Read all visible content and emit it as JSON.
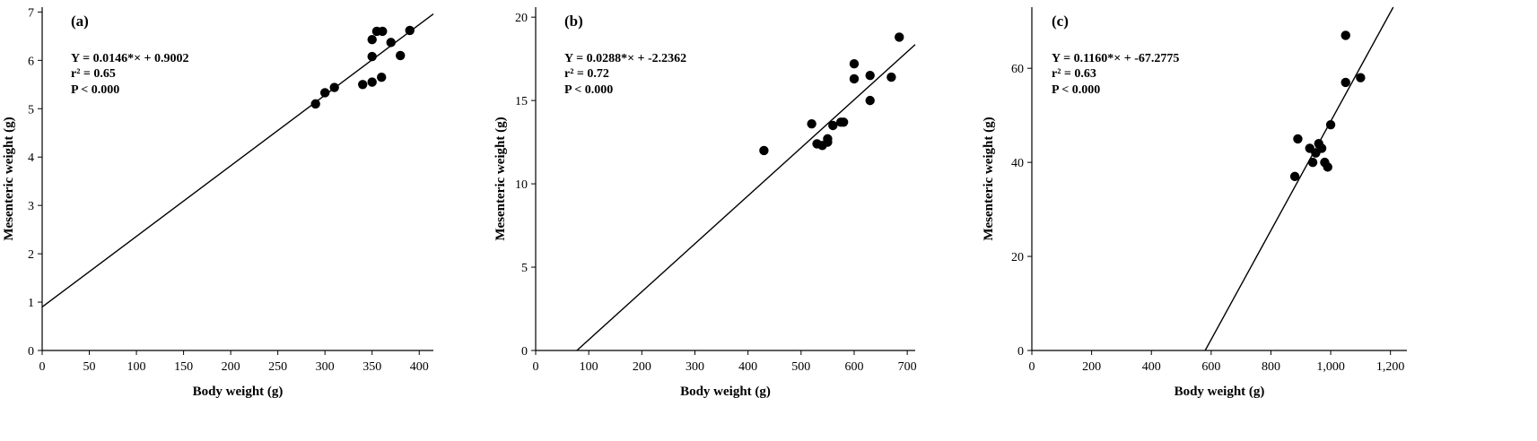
{
  "chart_data": [
    {
      "type": "scatter",
      "panel_label": "(a)",
      "xlabel": "Body weight (g)",
      "ylabel": "Mesenteric weight (g)",
      "xlim": [
        0,
        415
      ],
      "ylim": [
        0,
        7.1
      ],
      "xticks": [
        0,
        50,
        100,
        150,
        200,
        250,
        300,
        350,
        400
      ],
      "xtick_labels": [
        "0",
        "50",
        "100",
        "150",
        "200",
        "250",
        "300",
        "350",
        "400"
      ],
      "yticks": [
        0,
        1,
        2,
        3,
        4,
        5,
        6,
        7
      ],
      "ytick_labels": [
        "0",
        "1",
        "2",
        "3",
        "4",
        "5",
        "6",
        "7"
      ],
      "annotation": {
        "eq": "Y = 0.0146*× + 0.9002",
        "r2": "r² = 0.65",
        "p": "P < 0.000"
      },
      "fit": {
        "slope": 0.0146,
        "intercept": 0.9002
      },
      "points": [
        [
          290,
          5.1
        ],
        [
          300,
          5.33
        ],
        [
          310,
          5.44
        ],
        [
          340,
          5.5
        ],
        [
          350,
          5.55
        ],
        [
          360,
          5.65
        ],
        [
          350,
          6.08
        ],
        [
          380,
          6.1
        ],
        [
          370,
          6.37
        ],
        [
          350,
          6.43
        ],
        [
          355,
          6.6
        ],
        [
          361,
          6.6
        ],
        [
          390,
          6.62
        ]
      ]
    },
    {
      "type": "scatter",
      "panel_label": "(b)",
      "xlabel": "Body weight (g)",
      "ylabel": "Mesenteric weight (g)",
      "xlim": [
        0,
        715
      ],
      "ylim": [
        0,
        20.6
      ],
      "xticks": [
        0,
        100,
        200,
        300,
        400,
        500,
        600,
        700
      ],
      "xtick_labels": [
        "0",
        "100",
        "200",
        "300",
        "400",
        "500",
        "600",
        "700"
      ],
      "yticks": [
        0,
        5,
        10,
        15,
        20
      ],
      "ytick_labels": [
        "0",
        "5",
        "10",
        "15",
        "20"
      ],
      "annotation": {
        "eq": "Y = 0.0288*× + -2.2362",
        "r2": "r² = 0.72",
        "p": "P < 0.000"
      },
      "fit": {
        "slope": 0.0288,
        "intercept": -2.2362
      },
      "points": [
        [
          430,
          12.0
        ],
        [
          520,
          13.6
        ],
        [
          530,
          12.4
        ],
        [
          540,
          12.3
        ],
        [
          550,
          12.7
        ],
        [
          550,
          12.5
        ],
        [
          560,
          13.5
        ],
        [
          575,
          13.7
        ],
        [
          580,
          13.7
        ],
        [
          600,
          17.2
        ],
        [
          600,
          16.3
        ],
        [
          630,
          16.5
        ],
        [
          630,
          15.0
        ],
        [
          670,
          16.4
        ],
        [
          685,
          18.8
        ]
      ]
    },
    {
      "type": "scatter",
      "panel_label": "(c)",
      "xlabel": "Body weight (g)",
      "ylabel": "Mesenteric weight (g)",
      "xlim": [
        0,
        1255
      ],
      "ylim": [
        0,
        73
      ],
      "xticks": [
        0,
        200,
        400,
        600,
        800,
        1000,
        1200
      ],
      "xtick_labels": [
        "0",
        "200",
        "400",
        "600",
        "800",
        "1,000",
        "1,200"
      ],
      "yticks": [
        0,
        20,
        40,
        60
      ],
      "ytick_labels": [
        "0",
        "20",
        "40",
        "60"
      ],
      "annotation": {
        "eq": "Y = 0.1160*× + -67.2775",
        "r2": "r² = 0.63",
        "p": "P < 0.000"
      },
      "fit": {
        "slope": 0.116,
        "intercept": -67.2775
      },
      "points": [
        [
          880,
          37
        ],
        [
          890,
          45
        ],
        [
          930,
          43
        ],
        [
          940,
          40
        ],
        [
          950,
          42
        ],
        [
          960,
          44
        ],
        [
          970,
          43
        ],
        [
          980,
          40
        ],
        [
          990,
          39
        ],
        [
          1000,
          48
        ],
        [
          1050,
          67
        ],
        [
          1050,
          57
        ],
        [
          1100,
          58
        ]
      ]
    }
  ]
}
